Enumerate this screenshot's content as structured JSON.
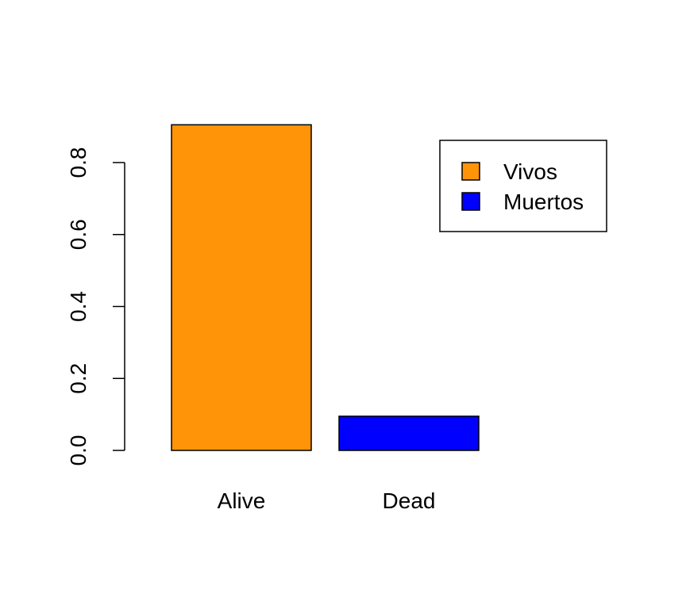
{
  "chart_data": {
    "type": "bar",
    "categories": [
      "Alive",
      "Dead"
    ],
    "values": [
      0.905,
      0.095
    ],
    "colors": [
      "#FF9408",
      "#0000FF"
    ],
    "title": "",
    "xlabel": "",
    "ylabel": "",
    "ylim": [
      0,
      0.9
    ],
    "yticks": [
      0.0,
      0.2,
      0.4,
      0.6,
      0.8
    ],
    "ytick_labels": [
      "0.0",
      "0.2",
      "0.4",
      "0.6",
      "0.8"
    ],
    "grid": false,
    "legend": {
      "position": "top-right",
      "entries": [
        {
          "label": "Vivos",
          "color": "#FF9408"
        },
        {
          "label": "Muertos",
          "color": "#0000FF"
        }
      ]
    }
  }
}
